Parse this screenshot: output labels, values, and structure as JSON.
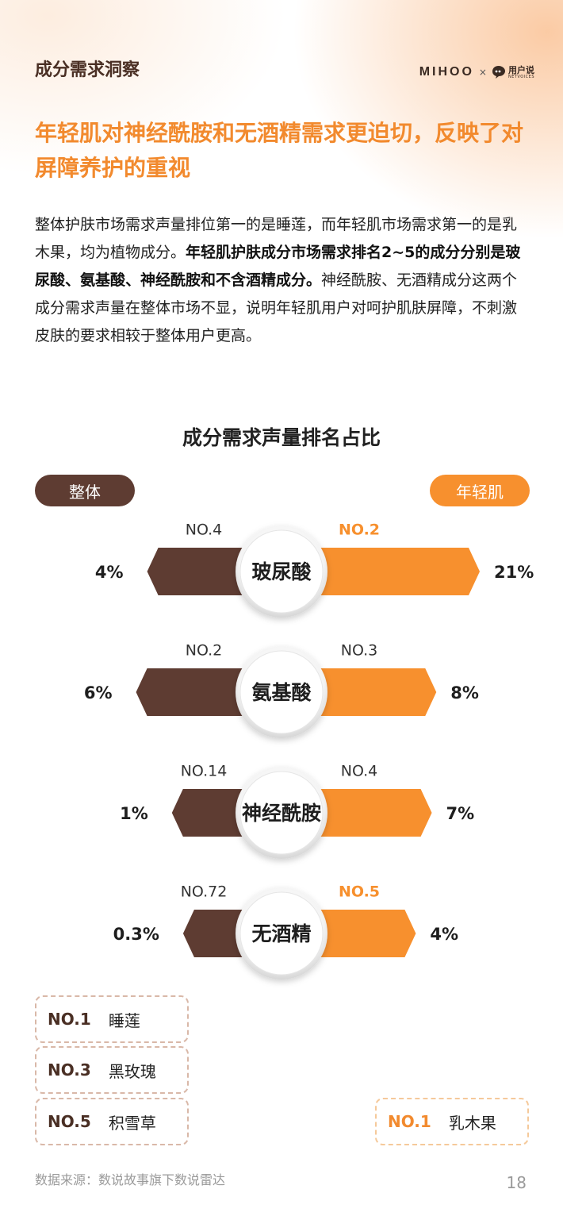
{
  "header": {
    "section_title": "成分需求洞察",
    "logo_primary": "MIHOO",
    "logo_separator": "×",
    "logo_partner_cn": "用户说",
    "logo_partner_en": "NETVOICES"
  },
  "headline": "年轻肌对神经酰胺和无酒精需求更迫切，反映了对屏障养护的重视",
  "body": {
    "part1": "整体护肤市场需求声量排位第一的是睡莲，而年轻肌市场需求第一的是乳木果，均为植物成分。",
    "part2_bold": "年轻肌护肤成分市场需求排名2~5的成分分别是玻尿酸、氨基酸、神经酰胺和不含酒精成分。",
    "part3": "神经酰胺、无酒精成分这两个成分需求声量在整体市场不显，说明年轻肌用户对呵护肌肤屏障，不刺激皮肤的要求相较于整体用户更高。"
  },
  "chart_data": {
    "type": "bar",
    "title": "成分需求声量排名占比",
    "series": [
      {
        "name": "整体",
        "values": [
          4,
          6,
          1,
          0.3
        ],
        "labels": [
          "4%",
          "6%",
          "1%",
          "0.3%"
        ],
        "ranks": [
          "NO.4",
          "NO.2",
          "NO.14",
          "NO.72"
        ]
      },
      {
        "name": "年轻肌",
        "values": [
          21,
          8,
          7,
          4
        ],
        "labels": [
          "21%",
          "8%",
          "7%",
          "4%"
        ],
        "ranks": [
          "NO.2",
          "NO.3",
          "NO.4",
          "NO.5"
        ]
      }
    ],
    "categories": [
      "玻尿酸",
      "氨基酸",
      "神经酰胺",
      "无酒精"
    ],
    "highlighted_youth_ranks": [
      true,
      false,
      false,
      true
    ],
    "unit": "%"
  },
  "legend": {
    "overall": [
      {
        "rank": "NO.1",
        "name": "睡莲"
      },
      {
        "rank": "NO.3",
        "name": "黑玫瑰"
      },
      {
        "rank": "NO.5",
        "name": "积雪草"
      }
    ],
    "youth": [
      {
        "rank": "NO.1",
        "name": "乳木果"
      }
    ]
  },
  "colors": {
    "overall": "#5e3c32",
    "youth": "#f7902e",
    "headline": "#f28a2e"
  },
  "footer": {
    "source": "数据来源：数说故事旗下数说雷达",
    "page_number": "18"
  }
}
